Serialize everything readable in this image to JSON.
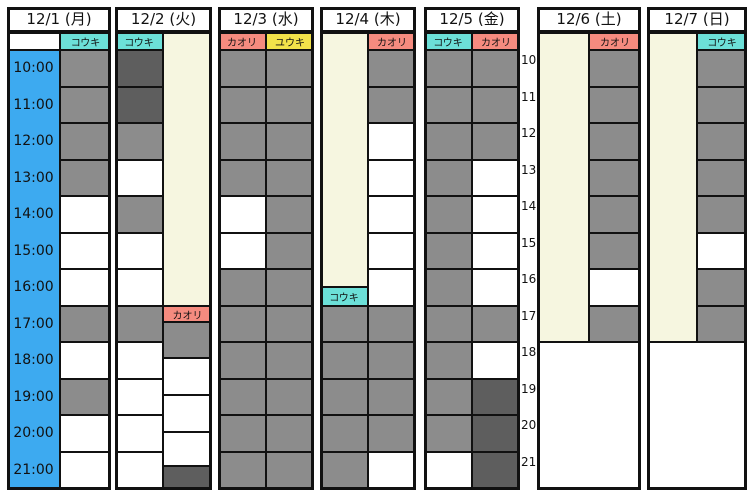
{
  "days": [
    {
      "label": "12/1 (月)",
      "tags": [
        "コウキ"
      ]
    },
    {
      "label": "12/2 (火)",
      "tags": [
        "コウキ",
        "カオリ"
      ]
    },
    {
      "label": "12/3 (水)",
      "tags": [
        "カオリ",
        "ユウキ"
      ]
    },
    {
      "label": "12/4 (木)",
      "tags": [
        "コウキ",
        "カオリ"
      ]
    },
    {
      "label": "12/5 (金)",
      "tags": [
        "コウキ",
        "カオリ"
      ]
    },
    {
      "label": "12/6 (土)",
      "tags": [
        "カオリ"
      ]
    },
    {
      "label": "12/7 (日)",
      "tags": [
        "コウキ"
      ]
    }
  ],
  "times": [
    "10:00",
    "11:00",
    "12:00",
    "13:00",
    "14:00",
    "15:00",
    "16:00",
    "17:00",
    "18:00",
    "19:00",
    "20:00",
    "21:00"
  ],
  "hour_marks": [
    "10",
    "11",
    "12",
    "13",
    "14",
    "15",
    "16",
    "17",
    "18",
    "19",
    "20",
    "21"
  ]
}
